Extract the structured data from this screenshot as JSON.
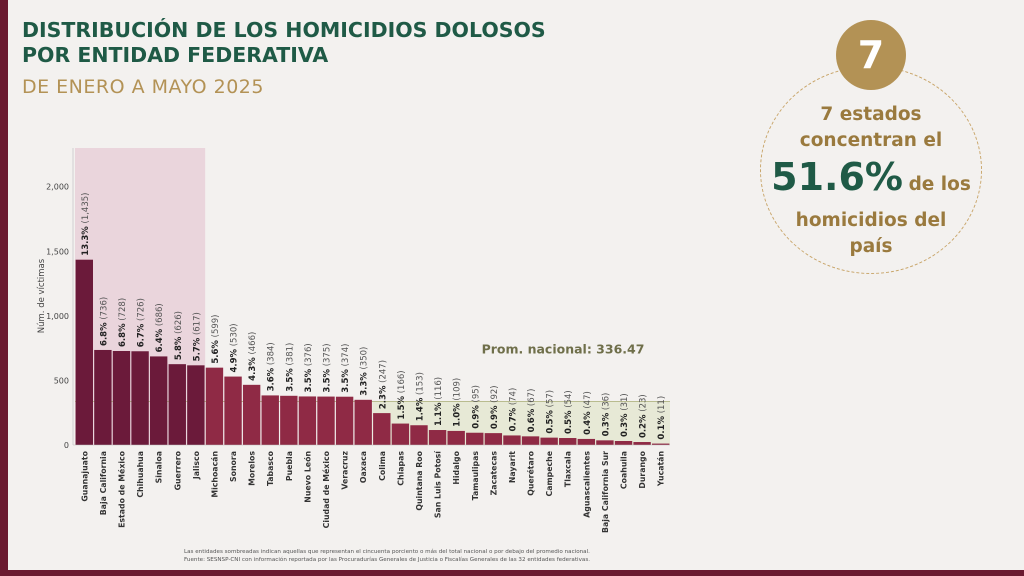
{
  "header": {
    "title_line1": "DISTRIBUCIÓN DE LOS HOMICIDIOS DOLOSOS",
    "title_line2": "POR ENTIDAD FEDERATIVA",
    "subtitle": "DE ENERO A MAYO 2025"
  },
  "callout": {
    "badge_number": "7",
    "line1": "7 estados",
    "line2": "concentran el",
    "big_value": "51.6%",
    "after_big": "de los",
    "line4": "homicidios del",
    "line5": "país"
  },
  "footnote": {
    "line1": "Las entidades sombreadas indican aquellas que representan el cincuenta porciento o más del total nacional o por debajo del promedio nacional.",
    "line2": "Fuente: SESNSP-CNI con información reportada por las Procuradurías Generales de Justicia o Fiscalías Generales de las 32 entidades federativas."
  },
  "colors": {
    "title_green": "#1f5a46",
    "gold": "#b39255",
    "top7_bar": "#6b1a3a",
    "other_bar": "#8f2a45",
    "highlight_band": "#ead5dc",
    "avg_band": "#e7e9d6"
  },
  "chart_data": {
    "type": "bar",
    "ylabel": "Núm. de víctimas",
    "ylim": [
      0,
      2300
    ],
    "yticks": [
      0,
      500,
      1000,
      1500,
      2000
    ],
    "ytick_labels": [
      "0",
      "500",
      "1,000",
      "1,500",
      "2,000"
    ],
    "average": 336.47,
    "average_label": "Prom. nacional: 336.47",
    "highlighted_count": 7,
    "categories": [
      "Guanajuato",
      "Baja California",
      "Estado de México",
      "Chihuahua",
      "Sinaloa",
      "Guerrero",
      "Jalisco",
      "Michoacán",
      "Sonora",
      "Morelos",
      "Tabasco",
      "Puebla",
      "Nuevo León",
      "Ciudad de México",
      "Veracruz",
      "Oaxaca",
      "Colima",
      "Chiapas",
      "Quintana Roo",
      "San Luis Potosí",
      "Hidalgo",
      "Tamaulipas",
      "Zacatecas",
      "Nayarit",
      "Querétaro",
      "Campeche",
      "Tlaxcala",
      "Aguascalientes",
      "Baja California Sur",
      "Coahuila",
      "Durango",
      "Yucatán"
    ],
    "values": [
      1435,
      736,
      728,
      726,
      686,
      626,
      617,
      599,
      530,
      466,
      384,
      381,
      376,
      375,
      374,
      350,
      247,
      166,
      153,
      116,
      109,
      95,
      92,
      74,
      67,
      57,
      54,
      47,
      36,
      31,
      23,
      11
    ],
    "percents": [
      "13.3%",
      "6.8%",
      "6.8%",
      "6.7%",
      "6.4%",
      "5.8%",
      "5.7%",
      "5.6%",
      "4.9%",
      "4.3%",
      "3.6%",
      "3.5%",
      "3.5%",
      "3.5%",
      "3.5%",
      "3.3%",
      "2.3%",
      "1.5%",
      "1.4%",
      "1.1%",
      "1.0%",
      "0.9%",
      "0.9%",
      "0.7%",
      "0.6%",
      "0.5%",
      "0.5%",
      "0.4%",
      "0.3%",
      "0.3%",
      "0.2%",
      "0.1%"
    ],
    "value_labels": [
      "(1,435)",
      "(736)",
      "(728)",
      "(726)",
      "(686)",
      "(626)",
      "(617)",
      "(599)",
      "(530)",
      "(466)",
      "(384)",
      "(381)",
      "(376)",
      "(375)",
      "(374)",
      "(350)",
      "(247)",
      "(166)",
      "(153)",
      "(116)",
      "(109)",
      "(95)",
      "(92)",
      "(74)",
      "(67)",
      "(57)",
      "(54)",
      "(47)",
      "(36)",
      "(31)",
      "(23)",
      "(11)"
    ]
  }
}
